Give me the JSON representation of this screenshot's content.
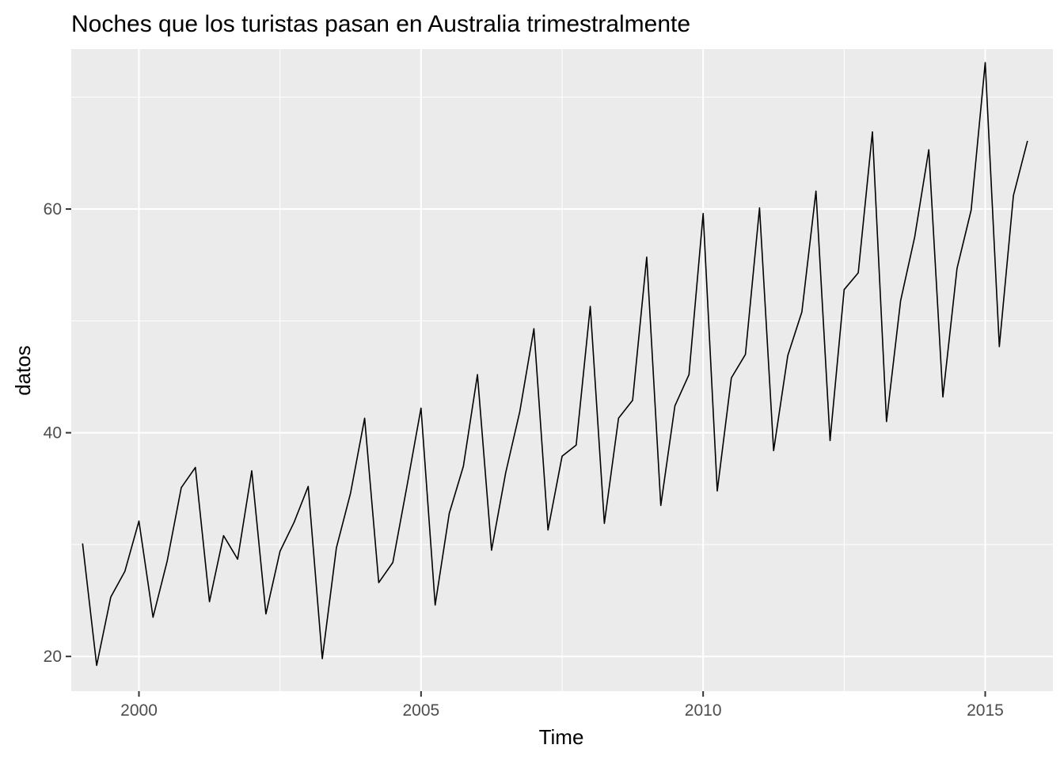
{
  "chart_data": {
    "type": "line",
    "title": "Noches que los turistas pasan en Australia trimestralmente",
    "xlabel": "Time",
    "ylabel": "datos",
    "xlim": [
      1998.8,
      2016.2
    ],
    "ylim": [
      16.9,
      74.3
    ],
    "x_ticks": [
      2000,
      2005,
      2010,
      2015
    ],
    "x_tick_labels": [
      "2000",
      "2005",
      "2010",
      "2015"
    ],
    "y_ticks": [
      20,
      40,
      60
    ],
    "y_tick_labels": [
      "20",
      "40",
      "60"
    ],
    "x_minor_ticks": [
      2002.5,
      2007.5,
      2012.5
    ],
    "y_minor_ticks": [
      30,
      50,
      70
    ],
    "grid": true,
    "legend": "none",
    "colors": {
      "panel": "#ebebeb",
      "grid": "#ffffff",
      "line": "#000000"
    },
    "series": [
      {
        "start": 1999.0,
        "frequency": 4,
        "values": [
          30.1,
          19.2,
          25.3,
          27.6,
          32.1,
          23.5,
          28.5,
          35.1,
          36.9,
          24.9,
          30.8,
          28.7,
          36.6,
          23.8,
          29.4,
          32.0,
          35.2,
          19.8,
          29.7,
          34.6,
          41.3,
          26.6,
          28.4,
          35.2,
          42.2,
          24.6,
          32.8,
          37.0,
          45.2,
          29.5,
          36.4,
          41.9,
          49.3,
          31.3,
          37.9,
          38.9,
          51.3,
          31.9,
          41.3,
          42.9,
          55.7,
          33.5,
          42.4,
          45.2,
          59.6,
          34.8,
          44.9,
          47.0,
          60.1,
          38.4,
          46.9,
          50.8,
          61.6,
          39.3,
          52.8,
          54.3,
          66.9,
          41.0,
          51.8,
          57.5,
          65.3,
          43.2,
          54.7,
          59.9,
          73.1,
          47.7,
          61.2,
          66.1
        ]
      }
    ]
  }
}
